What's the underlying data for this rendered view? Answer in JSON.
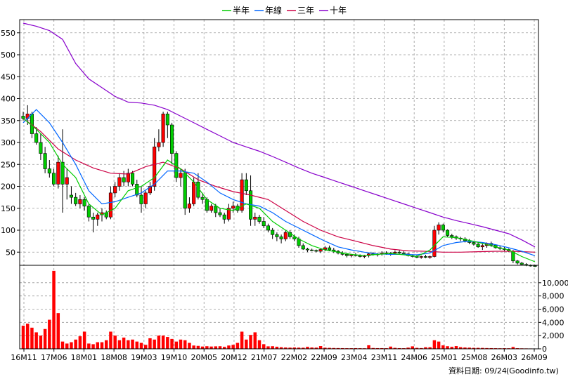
{
  "chart_data": {
    "type": "candlestick",
    "legend": {
      "placement": "top-center",
      "entries": [
        {
          "label": "半年",
          "color": "#00cc00"
        },
        {
          "label": "年線",
          "color": "#0066ff"
        },
        {
          "label": "三年",
          "color": "#cc0044"
        },
        {
          "label": "十年",
          "color": "#8800cc"
        }
      ]
    },
    "grid": true,
    "price_axis": {
      "range": [
        20,
        580
      ],
      "ticks": [
        "50",
        "100",
        "150",
        "200",
        "250",
        "300",
        "350",
        "400",
        "450",
        "500",
        "550"
      ]
    },
    "volume_axis": {
      "range": [
        0,
        12000
      ],
      "ticks": [
        "0",
        "2,000",
        "4,000",
        "6,000",
        "8,000",
        "10,000"
      ]
    },
    "x_ticks": [
      "16M11",
      "17M06",
      "18M01",
      "18M08",
      "19M03",
      "19M10",
      "20M05",
      "20M12",
      "21M07",
      "22M02",
      "22M09",
      "23M04",
      "23M11",
      "24M06",
      "25M01",
      "25M08",
      "26M03",
      "26M09"
    ],
    "x_range": [
      0,
      117
    ],
    "candles": [
      [
        360,
        370,
        350,
        355
      ],
      [
        355,
        385,
        340,
        365
      ],
      [
        365,
        370,
        310,
        320
      ],
      [
        320,
        335,
        295,
        300
      ],
      [
        300,
        320,
        260,
        275
      ],
      [
        275,
        290,
        230,
        240
      ],
      [
        240,
        260,
        220,
        230
      ],
      [
        230,
        240,
        200,
        205
      ],
      [
        205,
        270,
        195,
        255
      ],
      [
        255,
        330,
        140,
        205
      ],
      [
        205,
        240,
        170,
        220
      ],
      [
        180,
        200,
        160,
        175
      ],
      [
        175,
        185,
        155,
        160
      ],
      [
        160,
        180,
        150,
        170
      ],
      [
        170,
        175,
        145,
        155
      ],
      [
        155,
        160,
        120,
        130
      ],
      [
        130,
        140,
        95,
        125
      ],
      [
        125,
        140,
        110,
        135
      ],
      [
        135,
        150,
        120,
        140
      ],
      [
        140,
        145,
        125,
        130
      ],
      [
        130,
        200,
        125,
        185
      ],
      [
        185,
        210,
        175,
        200
      ],
      [
        200,
        230,
        190,
        220
      ],
      [
        220,
        235,
        200,
        210
      ],
      [
        210,
        240,
        200,
        230
      ],
      [
        230,
        235,
        200,
        205
      ],
      [
        205,
        215,
        175,
        180
      ],
      [
        180,
        200,
        140,
        160
      ],
      [
        160,
        190,
        150,
        185
      ],
      [
        185,
        210,
        180,
        200
      ],
      [
        200,
        310,
        190,
        290
      ],
      [
        290,
        330,
        280,
        300
      ],
      [
        300,
        370,
        290,
        365
      ],
      [
        365,
        370,
        310,
        340
      ],
      [
        340,
        345,
        250,
        275
      ],
      [
        275,
        280,
        210,
        220
      ],
      [
        220,
        240,
        200,
        230
      ],
      [
        230,
        240,
        135,
        150
      ],
      [
        150,
        175,
        140,
        160
      ],
      [
        160,
        220,
        155,
        210
      ],
      [
        210,
        230,
        170,
        175
      ],
      [
        175,
        185,
        160,
        170
      ],
      [
        170,
        175,
        140,
        145
      ],
      [
        145,
        160,
        140,
        155
      ],
      [
        155,
        160,
        130,
        140
      ],
      [
        140,
        150,
        130,
        135
      ],
      [
        135,
        140,
        115,
        125
      ],
      [
        125,
        160,
        120,
        150
      ],
      [
        150,
        165,
        140,
        155
      ],
      [
        155,
        160,
        140,
        145
      ],
      [
        145,
        230,
        140,
        215
      ],
      [
        215,
        230,
        180,
        190
      ],
      [
        190,
        225,
        110,
        125
      ],
      [
        125,
        140,
        110,
        130
      ],
      [
        130,
        135,
        115,
        120
      ],
      [
        120,
        130,
        105,
        110
      ],
      [
        110,
        115,
        95,
        100
      ],
      [
        100,
        105,
        80,
        90
      ],
      [
        90,
        95,
        75,
        85
      ],
      [
        85,
        90,
        70,
        80
      ],
      [
        80,
        100,
        75,
        95
      ],
      [
        95,
        100,
        80,
        85
      ],
      [
        85,
        90,
        75,
        80
      ],
      [
        80,
        85,
        60,
        65
      ],
      [
        65,
        70,
        55,
        57
      ],
      [
        57,
        60,
        50,
        55
      ],
      [
        55,
        58,
        52,
        54
      ],
      [
        54,
        56,
        50,
        52
      ],
      [
        52,
        58,
        48,
        56
      ],
      [
        56,
        64,
        52,
        60
      ],
      [
        60,
        65,
        52,
        55
      ],
      [
        55,
        60,
        48,
        52
      ],
      [
        52,
        55,
        45,
        48
      ],
      [
        48,
        52,
        42,
        45
      ],
      [
        45,
        48,
        38,
        42
      ],
      [
        42,
        46,
        38,
        44
      ],
      [
        44,
        48,
        40,
        42
      ],
      [
        42,
        45,
        38,
        40
      ],
      [
        40,
        44,
        36,
        42
      ],
      [
        42,
        48,
        38,
        46
      ],
      [
        46,
        50,
        42,
        44
      ],
      [
        44,
        48,
        40,
        46
      ],
      [
        46,
        52,
        42,
        48
      ],
      [
        48,
        52,
        44,
        46
      ],
      [
        46,
        50,
        42,
        48
      ],
      [
        48,
        54,
        44,
        50
      ],
      [
        50,
        55,
        46,
        48
      ],
      [
        48,
        52,
        44,
        46
      ],
      [
        46,
        48,
        40,
        42
      ],
      [
        42,
        45,
        38,
        40
      ],
      [
        40,
        44,
        36,
        38
      ],
      [
        38,
        42,
        35,
        40
      ],
      [
        40,
        44,
        36,
        38
      ],
      [
        38,
        42,
        35,
        40
      ],
      [
        40,
        110,
        38,
        100
      ],
      [
        100,
        118,
        90,
        112
      ],
      [
        112,
        115,
        95,
        100
      ],
      [
        100,
        102,
        85,
        88
      ],
      [
        88,
        92,
        80,
        85
      ],
      [
        85,
        88,
        78,
        82
      ],
      [
        82,
        85,
        75,
        80
      ],
      [
        80,
        84,
        72,
        76
      ],
      [
        76,
        80,
        68,
        72
      ],
      [
        72,
        75,
        65,
        68
      ],
      [
        68,
        72,
        60,
        62
      ],
      [
        62,
        70,
        55,
        65
      ],
      [
        65,
        72,
        60,
        70
      ],
      [
        70,
        74,
        62,
        66
      ],
      [
        66,
        68,
        58,
        60
      ],
      [
        60,
        64,
        55,
        58
      ],
      [
        58,
        62,
        52,
        56
      ],
      [
        56,
        58,
        50,
        52
      ],
      [
        52,
        55,
        25,
        30
      ],
      [
        30,
        32,
        22,
        25
      ],
      [
        25,
        28,
        20,
        22
      ],
      [
        22,
        25,
        18,
        20
      ],
      [
        20,
        22,
        17,
        19
      ],
      [
        19,
        21,
        16,
        18
      ]
    ],
    "volume": [
      3500,
      3800,
      3200,
      2500,
      2000,
      3000,
      4400,
      11800,
      5400,
      1100,
      800,
      1000,
      1400,
      1900,
      2600,
      800,
      700,
      1000,
      1000,
      1300,
      2600,
      2000,
      1300,
      1700,
      1300,
      1400,
      1100,
      900,
      600,
      1600,
      1400,
      2000,
      2000,
      1800,
      1500,
      1100,
      1400,
      1300,
      900,
      500,
      450,
      350,
      400,
      350,
      380,
      400,
      300,
      500,
      600,
      900,
      2600,
      1400,
      2100,
      2500,
      1300,
      700,
      380,
      400,
      320,
      240,
      200,
      180,
      200,
      180,
      170,
      300,
      200,
      180,
      420,
      170,
      150,
      130,
      120,
      110,
      100,
      100,
      110,
      100,
      90,
      540,
      130,
      110,
      110,
      100,
      340,
      150,
      110,
      100,
      180,
      380,
      150,
      120,
      240,
      240,
      1300,
      1100,
      520,
      400,
      300,
      420,
      250,
      200,
      180,
      150,
      150,
      140,
      120,
      110,
      100,
      90,
      100,
      90,
      280,
      100,
      80,
      70,
      60,
      50
    ],
    "ma_half_year": [
      [
        0,
        355
      ],
      [
        3,
        330
      ],
      [
        6,
        300
      ],
      [
        9,
        250
      ],
      [
        12,
        220
      ],
      [
        15,
        160
      ],
      [
        18,
        135
      ],
      [
        21,
        150
      ],
      [
        24,
        190
      ],
      [
        27,
        200
      ],
      [
        30,
        220
      ],
      [
        33,
        260
      ],
      [
        36,
        240
      ],
      [
        39,
        210
      ],
      [
        42,
        170
      ],
      [
        45,
        150
      ],
      [
        48,
        145
      ],
      [
        51,
        160
      ],
      [
        54,
        150
      ],
      [
        57,
        120
      ],
      [
        60,
        100
      ],
      [
        63,
        80
      ],
      [
        66,
        65
      ],
      [
        69,
        55
      ],
      [
        72,
        50
      ],
      [
        75,
        45
      ],
      [
        78,
        42
      ],
      [
        81,
        45
      ],
      [
        84,
        47
      ],
      [
        87,
        44
      ],
      [
        90,
        40
      ],
      [
        93,
        55
      ],
      [
        96,
        85
      ],
      [
        99,
        83
      ],
      [
        102,
        77
      ],
      [
        105,
        70
      ],
      [
        108,
        62
      ],
      [
        111,
        55
      ],
      [
        114,
        40
      ],
      [
        117,
        28
      ]
    ],
    "ma_year": [
      [
        0,
        345
      ],
      [
        3,
        375
      ],
      [
        6,
        345
      ],
      [
        9,
        300
      ],
      [
        12,
        250
      ],
      [
        15,
        190
      ],
      [
        18,
        160
      ],
      [
        21,
        165
      ],
      [
        24,
        175
      ],
      [
        27,
        185
      ],
      [
        30,
        205
      ],
      [
        33,
        235
      ],
      [
        36,
        235
      ],
      [
        39,
        230
      ],
      [
        42,
        210
      ],
      [
        45,
        185
      ],
      [
        48,
        170
      ],
      [
        51,
        160
      ],
      [
        54,
        155
      ],
      [
        57,
        140
      ],
      [
        60,
        120
      ],
      [
        63,
        105
      ],
      [
        66,
        90
      ],
      [
        69,
        75
      ],
      [
        72,
        62
      ],
      [
        75,
        55
      ],
      [
        78,
        50
      ],
      [
        81,
        46
      ],
      [
        84,
        45
      ],
      [
        87,
        45
      ],
      [
        90,
        44
      ],
      [
        93,
        48
      ],
      [
        96,
        65
      ],
      [
        99,
        72
      ],
      [
        102,
        75
      ],
      [
        105,
        72
      ],
      [
        108,
        67
      ],
      [
        111,
        60
      ],
      [
        114,
        52
      ],
      [
        117,
        42
      ]
    ],
    "ma_three_year": [
      [
        0,
        355
      ],
      [
        4,
        325
      ],
      [
        8,
        285
      ],
      [
        12,
        260
      ],
      [
        16,
        242
      ],
      [
        20,
        230
      ],
      [
        24,
        228
      ],
      [
        28,
        245
      ],
      [
        32,
        255
      ],
      [
        36,
        240
      ],
      [
        40,
        215
      ],
      [
        44,
        200
      ],
      [
        48,
        188
      ],
      [
        52,
        180
      ],
      [
        56,
        170
      ],
      [
        60,
        145
      ],
      [
        64,
        120
      ],
      [
        68,
        100
      ],
      [
        72,
        85
      ],
      [
        76,
        75
      ],
      [
        80,
        65
      ],
      [
        84,
        57
      ],
      [
        88,
        53
      ],
      [
        92,
        52
      ],
      [
        96,
        50
      ],
      [
        100,
        50
      ],
      [
        104,
        51
      ],
      [
        108,
        52
      ],
      [
        112,
        52
      ],
      [
        117,
        50
      ]
    ],
    "ma_ten_year": [
      [
        0,
        572
      ],
      [
        3,
        565
      ],
      [
        6,
        555
      ],
      [
        9,
        535
      ],
      [
        12,
        480
      ],
      [
        15,
        445
      ],
      [
        18,
        425
      ],
      [
        21,
        405
      ],
      [
        24,
        392
      ],
      [
        27,
        390
      ],
      [
        30,
        385
      ],
      [
        33,
        375
      ],
      [
        36,
        360
      ],
      [
        39,
        345
      ],
      [
        42,
        330
      ],
      [
        45,
        315
      ],
      [
        48,
        300
      ],
      [
        51,
        290
      ],
      [
        54,
        280
      ],
      [
        57,
        268
      ],
      [
        60,
        255
      ],
      [
        63,
        242
      ],
      [
        66,
        230
      ],
      [
        69,
        220
      ],
      [
        72,
        210
      ],
      [
        75,
        200
      ],
      [
        78,
        190
      ],
      [
        81,
        180
      ],
      [
        84,
        170
      ],
      [
        87,
        160
      ],
      [
        90,
        150
      ],
      [
        93,
        140
      ],
      [
        96,
        130
      ],
      [
        99,
        122
      ],
      [
        102,
        115
      ],
      [
        105,
        108
      ],
      [
        108,
        100
      ],
      [
        111,
        92
      ],
      [
        114,
        78
      ],
      [
        117,
        62
      ]
    ],
    "source_label": "資料日期: 09/24",
    "watermark": "(Goodinfo.tw)"
  }
}
